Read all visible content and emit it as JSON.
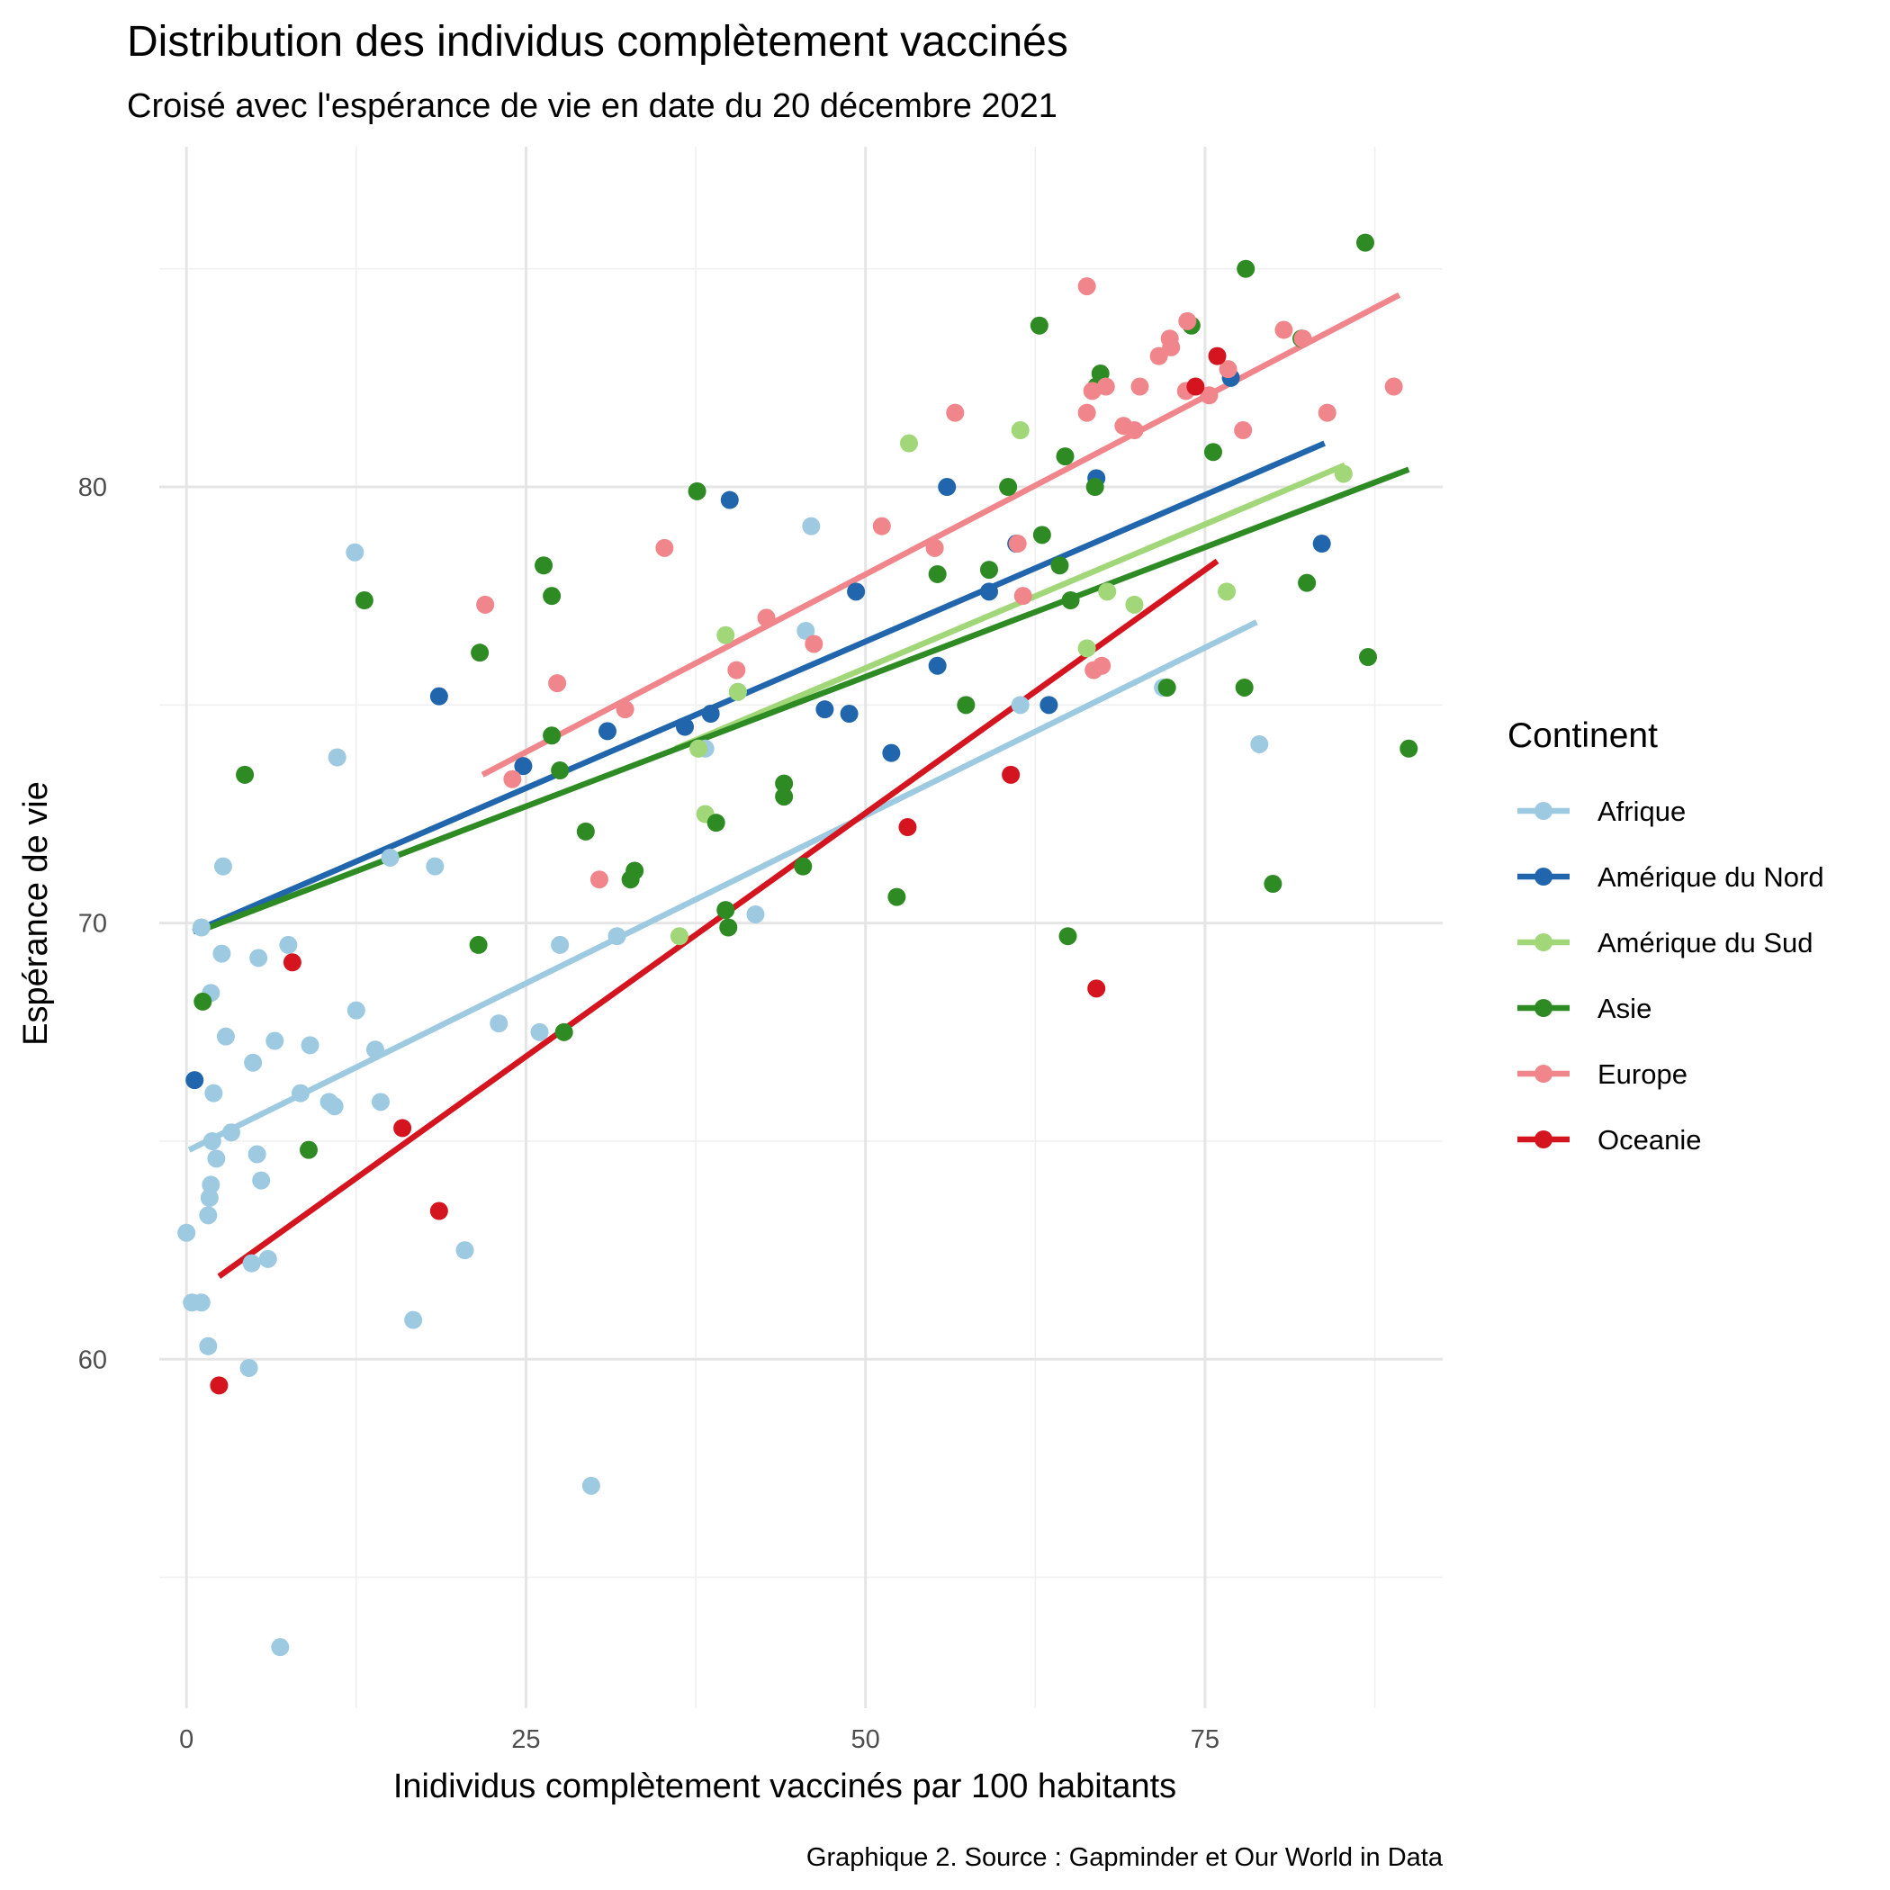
{
  "chart_data": {
    "type": "scatter",
    "title": "Distribution des individus complètement vaccinés",
    "subtitle": "Croisé avec l'espérance de vie en date du 20 décembre 2021",
    "xlabel": "Inidividus complètement vaccinés par 100 habitants",
    "ylabel": "Espérance de vie",
    "caption": "Graphique 2. Source : Gapminder et Our World in Data",
    "xlim": [
      -2,
      92.5
    ],
    "ylim": [
      52,
      87.8
    ],
    "x_ticks": [
      0,
      25,
      50,
      75
    ],
    "y_ticks": [
      60,
      70,
      80
    ],
    "grid": true,
    "legend": {
      "title": "Continent",
      "position": "right"
    },
    "series": [
      {
        "name": "Afrique",
        "color": "#9ecae1",
        "trend": [
          [
            0.2,
            64.8
          ],
          [
            78.8,
            76.9
          ]
        ],
        "points": [
          [
            0.0,
            62.9
          ],
          [
            0.4,
            61.3
          ],
          [
            1.1,
            61.3
          ],
          [
            1.1,
            69.9
          ],
          [
            1.6,
            63.3
          ],
          [
            1.6,
            60.3
          ],
          [
            1.7,
            63.7
          ],
          [
            1.8,
            64.0
          ],
          [
            1.8,
            68.4
          ],
          [
            1.9,
            65.0
          ],
          [
            2.0,
            66.1
          ],
          [
            2.2,
            64.6
          ],
          [
            2.6,
            69.3
          ],
          [
            2.7,
            71.3
          ],
          [
            2.9,
            67.4
          ],
          [
            3.3,
            65.2
          ],
          [
            4.6,
            59.8
          ],
          [
            4.8,
            62.2
          ],
          [
            4.9,
            66.8
          ],
          [
            5.2,
            64.7
          ],
          [
            5.3,
            69.2
          ],
          [
            5.5,
            64.1
          ],
          [
            6.0,
            62.3
          ],
          [
            6.5,
            67.3
          ],
          [
            6.9,
            53.4
          ],
          [
            7.5,
            69.5
          ],
          [
            8.4,
            66.1
          ],
          [
            9.1,
            67.2
          ],
          [
            10.5,
            65.9
          ],
          [
            10.9,
            65.8
          ],
          [
            11.1,
            73.8
          ],
          [
            12.4,
            78.5
          ],
          [
            12.5,
            68.0
          ],
          [
            13.9,
            67.1
          ],
          [
            14.3,
            65.9
          ],
          [
            15.0,
            71.5
          ],
          [
            16.7,
            60.9
          ],
          [
            18.3,
            71.3
          ],
          [
            20.5,
            62.5
          ],
          [
            23.0,
            67.7
          ],
          [
            26.0,
            67.5
          ],
          [
            27.5,
            69.5
          ],
          [
            29.8,
            57.1
          ],
          [
            31.7,
            69.7
          ],
          [
            38.2,
            74.0
          ],
          [
            40.6,
            75.3
          ],
          [
            41.9,
            70.2
          ],
          [
            45.6,
            76.7
          ],
          [
            46.0,
            79.1
          ],
          [
            61.4,
            75.0
          ],
          [
            71.9,
            75.4
          ],
          [
            79.0,
            74.1
          ]
        ]
      },
      {
        "name": "Amérique du Nord",
        "color": "#2166ac",
        "trend": [
          [
            0.5,
            69.8
          ],
          [
            83.8,
            81.0
          ]
        ],
        "points": [
          [
            0.6,
            66.4
          ],
          [
            18.6,
            75.2
          ],
          [
            24.8,
            73.6
          ],
          [
            31.0,
            74.4
          ],
          [
            36.7,
            74.5
          ],
          [
            38.6,
            74.8
          ],
          [
            40.0,
            79.7
          ],
          [
            47.0,
            74.9
          ],
          [
            48.8,
            74.8
          ],
          [
            49.3,
            77.6
          ],
          [
            51.9,
            73.9
          ],
          [
            55.3,
            75.9
          ],
          [
            56.0,
            80.0
          ],
          [
            59.1,
            77.6
          ],
          [
            61.1,
            78.7
          ],
          [
            63.5,
            75.0
          ],
          [
            67.0,
            80.2
          ],
          [
            76.9,
            82.5
          ],
          [
            83.6,
            78.7
          ]
        ]
      },
      {
        "name": "Amérique du Sud",
        "color": "#a1d779",
        "trend": [
          [
            36.0,
            74.0
          ],
          [
            85.3,
            80.5
          ]
        ],
        "points": [
          [
            36.3,
            69.7
          ],
          [
            37.7,
            74.0
          ],
          [
            38.2,
            72.5
          ],
          [
            39.7,
            76.6
          ],
          [
            40.6,
            75.3
          ],
          [
            53.2,
            81.0
          ],
          [
            61.4,
            81.3
          ],
          [
            66.3,
            76.3
          ],
          [
            67.8,
            77.6
          ],
          [
            69.8,
            77.3
          ],
          [
            76.6,
            77.6
          ],
          [
            85.2,
            80.3
          ]
        ]
      },
      {
        "name": "Asie",
        "color": "#2e8b24",
        "trend": [
          [
            0.8,
            69.8
          ],
          [
            90.0,
            80.4
          ]
        ],
        "points": [
          [
            1.2,
            68.2
          ],
          [
            4.3,
            73.4
          ],
          [
            9.0,
            64.8
          ],
          [
            13.1,
            77.4
          ],
          [
            21.5,
            69.5
          ],
          [
            21.6,
            76.2
          ],
          [
            26.3,
            78.2
          ],
          [
            26.9,
            74.3
          ],
          [
            26.9,
            77.5
          ],
          [
            27.5,
            73.5
          ],
          [
            27.8,
            67.5
          ],
          [
            29.4,
            72.1
          ],
          [
            32.7,
            71.0
          ],
          [
            33.0,
            71.2
          ],
          [
            37.6,
            79.9
          ],
          [
            39.0,
            72.3
          ],
          [
            39.7,
            70.3
          ],
          [
            39.9,
            69.9
          ],
          [
            44.0,
            72.9
          ],
          [
            44.0,
            73.2
          ],
          [
            45.4,
            71.3
          ],
          [
            52.3,
            70.6
          ],
          [
            55.3,
            78.0
          ],
          [
            57.4,
            75.0
          ],
          [
            59.1,
            78.1
          ],
          [
            60.5,
            80.0
          ],
          [
            62.8,
            83.7
          ],
          [
            63.0,
            78.9
          ],
          [
            64.3,
            78.2
          ],
          [
            64.7,
            80.7
          ],
          [
            64.9,
            69.7
          ],
          [
            65.1,
            77.4
          ],
          [
            66.9,
            80.0
          ],
          [
            67.0,
            82.3
          ],
          [
            67.3,
            82.6
          ],
          [
            72.2,
            75.4
          ],
          [
            74.0,
            83.7
          ],
          [
            75.6,
            80.8
          ],
          [
            77.9,
            75.4
          ],
          [
            78.0,
            85.0
          ],
          [
            80.0,
            70.9
          ],
          [
            82.1,
            83.4
          ],
          [
            82.5,
            77.8
          ],
          [
            86.8,
            85.6
          ],
          [
            87.0,
            76.1
          ],
          [
            90.0,
            74.0
          ]
        ]
      },
      {
        "name": "Europe",
        "color": "#f0868b",
        "trend": [
          [
            21.8,
            73.4
          ],
          [
            89.3,
            84.4
          ]
        ],
        "points": [
          [
            22.0,
            77.3
          ],
          [
            24.0,
            73.3
          ],
          [
            27.3,
            75.5
          ],
          [
            30.4,
            71.0
          ],
          [
            32.3,
            74.9
          ],
          [
            35.2,
            78.6
          ],
          [
            40.5,
            75.8
          ],
          [
            42.7,
            77.0
          ],
          [
            46.2,
            76.4
          ],
          [
            51.2,
            79.1
          ],
          [
            55.1,
            78.6
          ],
          [
            56.6,
            81.7
          ],
          [
            61.2,
            78.7
          ],
          [
            61.6,
            77.5
          ],
          [
            66.3,
            81.7
          ],
          [
            66.3,
            84.6
          ],
          [
            66.7,
            82.2
          ],
          [
            66.8,
            75.8
          ],
          [
            67.4,
            75.9
          ],
          [
            67.7,
            82.3
          ],
          [
            69.0,
            81.4
          ],
          [
            69.8,
            81.3
          ],
          [
            70.2,
            82.3
          ],
          [
            71.6,
            83.0
          ],
          [
            72.4,
            83.4
          ],
          [
            72.5,
            83.2
          ],
          [
            73.6,
            82.2
          ],
          [
            73.7,
            83.8
          ],
          [
            75.3,
            82.1
          ],
          [
            76.7,
            82.7
          ],
          [
            77.8,
            81.3
          ],
          [
            80.8,
            83.6
          ],
          [
            82.2,
            83.4
          ],
          [
            84.0,
            81.7
          ],
          [
            88.9,
            82.3
          ]
        ]
      },
      {
        "name": "Oceanie",
        "color": "#d4141e",
        "trend": [
          [
            2.4,
            61.9
          ],
          [
            75.9,
            78.3
          ]
        ],
        "points": [
          [
            2.4,
            59.4
          ],
          [
            7.8,
            69.1
          ],
          [
            15.9,
            65.3
          ],
          [
            18.6,
            63.4
          ],
          [
            53.1,
            72.2
          ],
          [
            60.7,
            73.4
          ],
          [
            67.0,
            68.5
          ],
          [
            74.3,
            82.3
          ],
          [
            75.9,
            83.0
          ]
        ]
      }
    ]
  }
}
